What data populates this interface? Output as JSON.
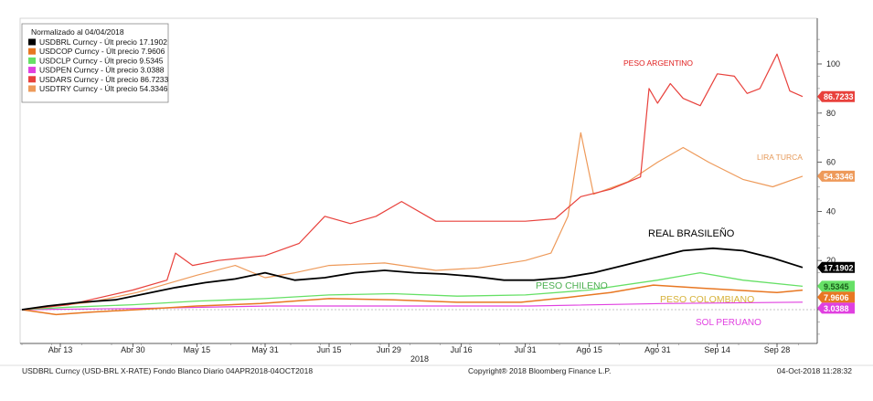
{
  "chart_data": {
    "type": "line",
    "normalization_note": "Normalizado al 04/04/2018",
    "year_label": "2018",
    "ylim": [
      -12,
      112
    ],
    "y_ticks": [
      "0",
      "20",
      "40",
      "60",
      "80",
      "100"
    ],
    "x_ticks": [
      "Abr 13",
      "Abr 30",
      "May 15",
      "May 31",
      "Jun 15",
      "Jun 29",
      "Jul 16",
      "Jul 31",
      "Ago 15",
      "Ago 31",
      "Sep 14",
      "Sep 28"
    ],
    "x_range": [
      "2018-04-04",
      "2018-10-04"
    ],
    "colors": {
      "brl": "#000000",
      "cop": "#e87722",
      "clp": "#66e066",
      "pen": "#e040e0",
      "ars": "#e8413c",
      "try": "#ee9a5a"
    },
    "series": [
      {
        "key": "brl",
        "name": "USDBRL Curncy - Últ precio 17.1902",
        "last_label": "17.1902",
        "x": [
          "2018-04-04",
          "2018-04-10",
          "2018-04-18",
          "2018-04-26",
          "2018-05-03",
          "2018-05-10",
          "2018-05-17",
          "2018-05-24",
          "2018-05-31",
          "2018-06-07",
          "2018-06-14",
          "2018-06-21",
          "2018-06-28",
          "2018-07-05",
          "2018-07-12",
          "2018-07-19",
          "2018-07-26",
          "2018-08-02",
          "2018-08-09",
          "2018-08-16",
          "2018-08-23",
          "2018-08-30",
          "2018-09-06",
          "2018-09-13",
          "2018-09-20",
          "2018-09-27",
          "2018-10-04"
        ],
        "y": [
          0,
          1.5,
          3,
          4,
          6.5,
          9,
          11,
          12.5,
          15,
          12,
          13,
          15,
          16,
          15,
          14.5,
          13.5,
          12,
          12,
          13,
          15,
          18,
          21,
          24,
          25,
          24,
          21,
          17.19
        ]
      },
      {
        "key": "cop",
        "name": "USDCOP Curncy - Últ precio 7.9606",
        "last_label": "7.9606",
        "x": [
          "2018-04-04",
          "2018-04-12",
          "2018-04-20",
          "2018-05-01",
          "2018-05-15",
          "2018-05-30",
          "2018-06-15",
          "2018-06-30",
          "2018-07-15",
          "2018-07-30",
          "2018-08-10",
          "2018-08-20",
          "2018-08-30",
          "2018-09-08",
          "2018-09-18",
          "2018-09-28",
          "2018-10-04"
        ],
        "y": [
          0,
          -2,
          -1,
          0,
          1.5,
          2.5,
          4.5,
          4,
          3,
          3,
          5,
          7,
          10,
          9,
          8,
          7,
          7.96
        ]
      },
      {
        "key": "clp",
        "name": "USDCLP Curncy - Últ precio 9.5345",
        "last_label": "9.5345",
        "x": [
          "2018-04-04",
          "2018-04-15",
          "2018-04-30",
          "2018-05-15",
          "2018-05-31",
          "2018-06-15",
          "2018-06-30",
          "2018-07-15",
          "2018-07-31",
          "2018-08-15",
          "2018-08-31",
          "2018-09-10",
          "2018-09-20",
          "2018-10-04"
        ],
        "y": [
          0,
          1,
          2,
          3.5,
          4.5,
          6,
          6.5,
          5.5,
          6,
          8,
          12,
          15,
          12,
          9.53
        ]
      },
      {
        "key": "pen",
        "name": "USDPEN Curncy - Últ precio 3.0388",
        "last_label": "3.0388",
        "x": [
          "2018-04-04",
          "2018-05-01",
          "2018-06-01",
          "2018-07-01",
          "2018-08-01",
          "2018-09-01",
          "2018-10-04"
        ],
        "y": [
          0,
          0.5,
          1.5,
          1.5,
          1.5,
          2.5,
          3.04
        ]
      },
      {
        "key": "ars",
        "name": "USDARS Curncy - Últ precio 86.7233",
        "last_label": "86.7233",
        "x": [
          "2018-04-04",
          "2018-04-15",
          "2018-04-30",
          "2018-05-08",
          "2018-05-10",
          "2018-05-14",
          "2018-05-20",
          "2018-05-31",
          "2018-06-08",
          "2018-06-14",
          "2018-06-20",
          "2018-06-26",
          "2018-07-02",
          "2018-07-10",
          "2018-07-20",
          "2018-07-31",
          "2018-08-07",
          "2018-08-13",
          "2018-08-20",
          "2018-08-27",
          "2018-08-29",
          "2018-08-31",
          "2018-09-03",
          "2018-09-06",
          "2018-09-10",
          "2018-09-14",
          "2018-09-18",
          "2018-09-21",
          "2018-09-24",
          "2018-09-28",
          "2018-10-01",
          "2018-10-04"
        ],
        "y": [
          0,
          2,
          8,
          12,
          23,
          18,
          20,
          22,
          27,
          38,
          35,
          38,
          44,
          36,
          36,
          36,
          37,
          46,
          49,
          54,
          90,
          84,
          92,
          86,
          83,
          96,
          95,
          88,
          90,
          104,
          89,
          86.72
        ]
      },
      {
        "key": "try",
        "name": "USDTRY Curncy - Últ precio 54.3346",
        "last_label": "54.3346",
        "x": [
          "2018-04-04",
          "2018-04-20",
          "2018-05-01",
          "2018-05-15",
          "2018-05-24",
          "2018-05-31",
          "2018-06-07",
          "2018-06-15",
          "2018-06-28",
          "2018-07-10",
          "2018-07-20",
          "2018-07-31",
          "2018-08-06",
          "2018-08-10",
          "2018-08-13",
          "2018-08-16",
          "2018-08-24",
          "2018-08-31",
          "2018-09-06",
          "2018-09-12",
          "2018-09-20",
          "2018-09-27",
          "2018-10-04"
        ],
        "y": [
          0,
          3,
          7,
          14,
          18,
          13,
          15,
          18,
          19,
          16,
          17,
          20,
          23,
          38,
          72,
          47,
          52,
          60,
          66,
          60,
          53,
          50,
          54.33
        ]
      }
    ],
    "annotations": [
      {
        "text": "PESO ARGENTINO",
        "color": "#e02020"
      },
      {
        "text": "LIRA TURCA",
        "color": "#e69a5a"
      },
      {
        "text": "REAL BRASILEÑO",
        "color": "#000000"
      },
      {
        "text": "PESO CHILENO",
        "color": "#4caf50"
      },
      {
        "text": "PESO COLOMBIANO",
        "color": "#d7b23a"
      },
      {
        "text": "SOL PERUANO",
        "color": "#e040e0"
      }
    ]
  },
  "footer": {
    "left": "USDBRL Curncy (USD-BRL X-RATE) Fondo Blanco  Diario 04APR2018-04OCT2018",
    "center": "Copyright® 2018 Bloomberg Finance L.P.",
    "right": "04-Oct-2018 11:28:32"
  }
}
